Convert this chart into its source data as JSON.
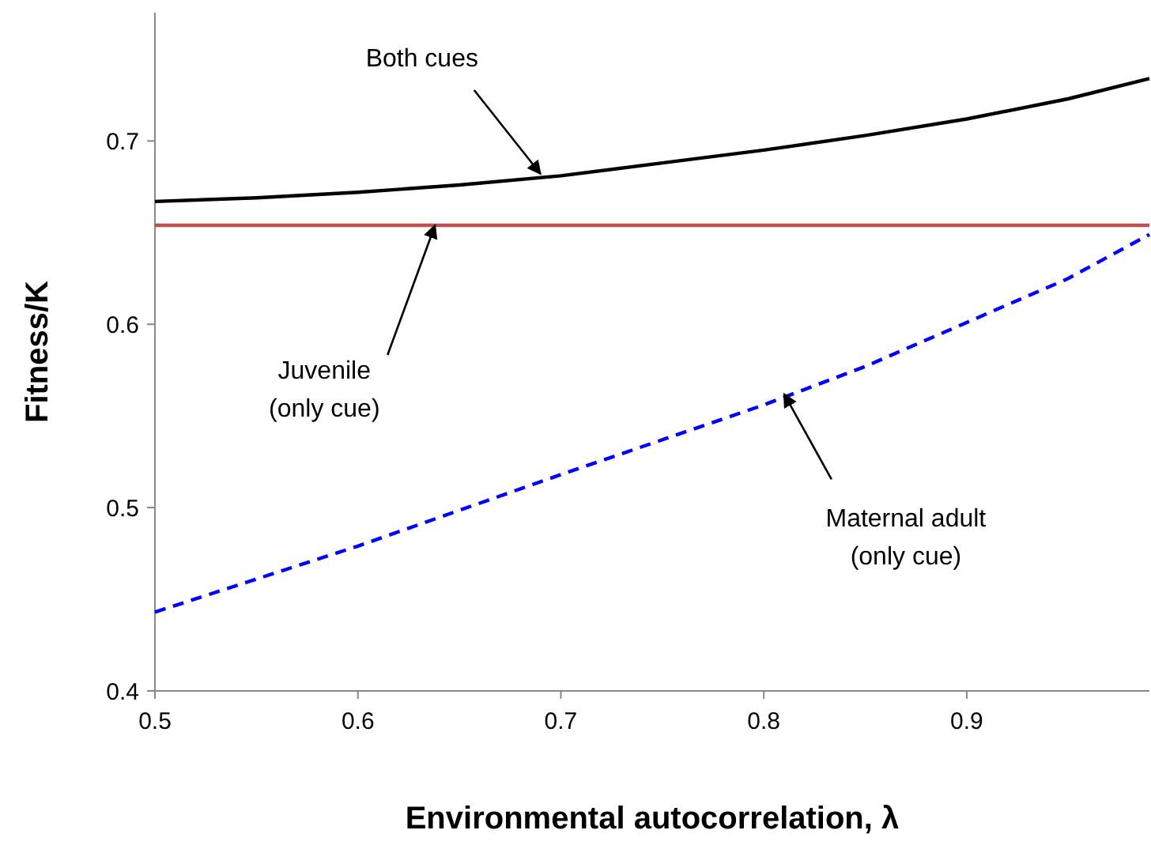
{
  "chart_data": {
    "type": "line",
    "xlabel": "Environmental autocorrelation, λ",
    "ylabel": "Fitness/K",
    "xlim": [
      0.5,
      0.99
    ],
    "xticks": [
      0.5,
      0.6,
      0.7,
      0.8,
      0.9
    ],
    "ylim": [
      0.4,
      0.77
    ],
    "yticks": [
      0.4,
      0.5,
      0.6,
      0.7
    ],
    "grid": false,
    "series": [
      {
        "color": "#000000",
        "line_style": "solid",
        "x": [
          0.5,
          0.55,
          0.6,
          0.65,
          0.7,
          0.75,
          0.8,
          0.85,
          0.9,
          0.95,
          0.99
        ],
        "values": [
          0.667,
          0.669,
          0.672,
          0.676,
          0.681,
          0.688,
          0.695,
          0.703,
          0.712,
          0.723,
          0.734
        ]
      },
      {
        "color": "#c0504d",
        "line_style": "solid",
        "x": [
          0.5,
          0.99
        ],
        "values": [
          0.654,
          0.654
        ]
      },
      {
        "color": "#0000ff",
        "line_style": "dashed",
        "x": [
          0.5,
          0.6,
          0.7,
          0.8,
          0.85,
          0.9,
          0.95,
          0.99
        ],
        "values": [
          0.443,
          0.479,
          0.518,
          0.556,
          0.577,
          0.601,
          0.625,
          0.649
        ]
      }
    ],
    "annotations": [
      {
        "text": "Both cues",
        "x": 0.69,
        "y": 0.682
      },
      {
        "text": "Juvenile\n(only cue)",
        "x": 0.638,
        "y": 0.654
      },
      {
        "text": "Maternal adult\n(only cue)",
        "x": 0.81,
        "y": 0.562
      }
    ]
  }
}
